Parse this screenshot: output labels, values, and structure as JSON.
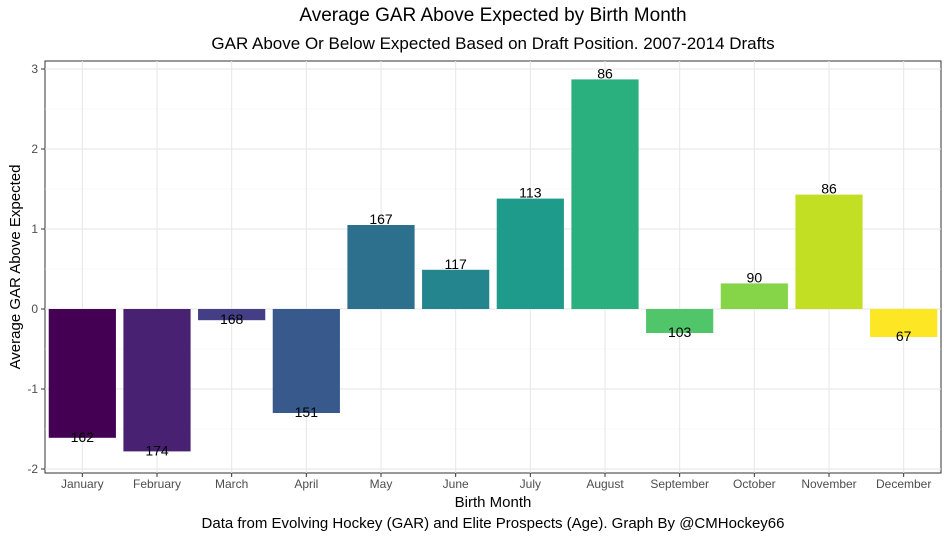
{
  "chart_data": {
    "type": "bar",
    "title": "Average GAR Above Expected by Birth Month",
    "subtitle": "GAR Above Or Below Expected Based on Draft Position. 2007-2014 Drafts",
    "xlabel": "Birth Month",
    "ylabel": "Average GAR Above Expected",
    "caption": "Data from Evolving Hockey (GAR) and Elite Prospects (Age). Graph By @CMHockey66",
    "ylim": [
      -2.05,
      3.1
    ],
    "yticks": [
      -2,
      -1,
      0,
      1,
      2,
      3
    ],
    "grid": true,
    "legend": "none",
    "categories": [
      "January",
      "February",
      "March",
      "April",
      "May",
      "June",
      "July",
      "August",
      "September",
      "October",
      "November",
      "December"
    ],
    "values": [
      -1.61,
      -1.78,
      -0.14,
      -1.3,
      1.05,
      0.49,
      1.38,
      2.87,
      -0.3,
      0.32,
      1.43,
      -0.35
    ],
    "labels": [
      "162",
      "174",
      "168",
      "151",
      "167",
      "117",
      "113",
      "86",
      "103",
      "90",
      "86",
      "67"
    ],
    "colors": [
      "#440154",
      "#482173",
      "#433e85",
      "#38598c",
      "#2d708e",
      "#25858e",
      "#1e9b8a",
      "#2ab07f",
      "#51c56a",
      "#86d549",
      "#c2df23",
      "#fde725"
    ]
  }
}
